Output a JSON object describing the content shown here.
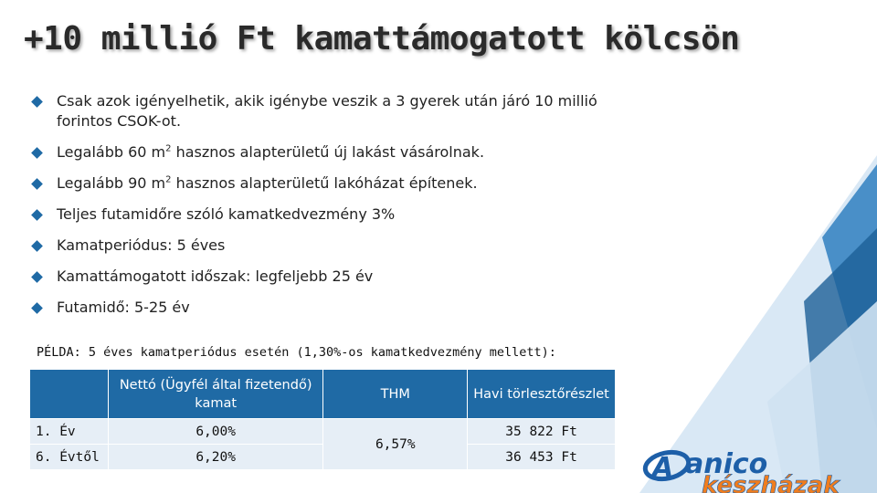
{
  "title": "+10 millió Ft kamattámogatott kölcsön",
  "bullets": [
    {
      "text": "Csak azok igényelhetik, akik igénybe veszik a 3 gyerek után járó 10 millió forintos CSOK-ot."
    },
    {
      "before": "Legalább 60 m",
      "sup": "2",
      "after": " hasznos alapterületű új lakást vásárolnak."
    },
    {
      "before": "Legalább 90 m",
      "sup": "2",
      "after": " hasznos alapterületű lakóházat építenek."
    },
    {
      "text": "Teljes futamidőre szóló kamatkedvezmény 3%"
    },
    {
      "text": "Kamatperiódus: 5 éves"
    },
    {
      "text": "Kamattámogatott időszak: legfeljebb 25 év"
    },
    {
      "text": "Futamidő: 5-25 év"
    }
  ],
  "example": "PÉLDA: 5 éves kamatperiódus esetén (1,30%-os kamatkedvezmény mellett):",
  "table": {
    "headers": [
      "",
      "Nettó (Ügyfél által fizetendő) kamat",
      "THM",
      "Havi törlesztőrészlet"
    ],
    "rows": [
      {
        "label": "1. Év",
        "net": "6,00%",
        "payment": "35 822 Ft"
      },
      {
        "label": "6. Évtől",
        "net": "6,20%",
        "payment": "36 453 Ft"
      }
    ],
    "thm": "6,57%"
  },
  "logo": {
    "line1": "anico",
    "line2": "készházak"
  },
  "colors": {
    "accent": "#1f6aa5",
    "logo_orange": "#f07d1e",
    "logo_blue": "#1d5fa8"
  }
}
